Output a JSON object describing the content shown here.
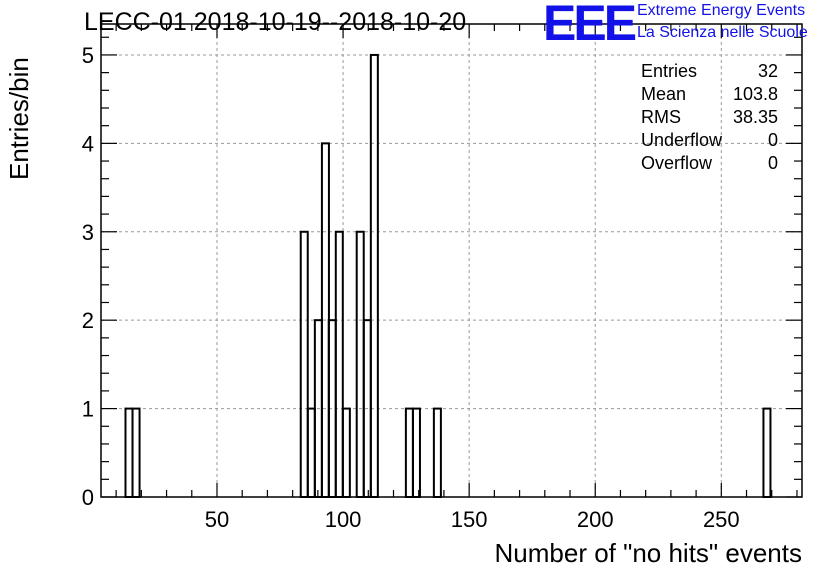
{
  "title": "LECC-01 2018-10-19--2018-10-20",
  "logo": {
    "text": "EEE",
    "line1": "Extreme Energy Events",
    "line2": "La Scienza nelle Scuole",
    "color": "#1212e8"
  },
  "stats": [
    {
      "label": "Entries",
      "value": "32"
    },
    {
      "label": "Mean",
      "value": "103.8"
    },
    {
      "label": "RMS",
      "value": "38.35"
    },
    {
      "label": "Underflow",
      "value": "0"
    },
    {
      "label": "Overflow",
      "value": "0"
    }
  ],
  "chart_data": {
    "type": "bar",
    "histogram": true,
    "xlabel": "Number of \"no hits\" events",
    "ylabel": "Entries/bin",
    "xlim": [
      4,
      282
    ],
    "ylim": [
      0,
      5.35
    ],
    "bin_width": 2.78,
    "x_ticks": [
      50,
      100,
      150,
      200,
      250
    ],
    "y_ticks": [
      0,
      1,
      2,
      3,
      4,
      5
    ],
    "grid": true,
    "bins": [
      {
        "x": 15.1,
        "value": 1
      },
      {
        "x": 17.9,
        "value": 1
      },
      {
        "x": 84.6,
        "value": 3
      },
      {
        "x": 87.4,
        "value": 1
      },
      {
        "x": 90.2,
        "value": 2
      },
      {
        "x": 93.0,
        "value": 4
      },
      {
        "x": 95.7,
        "value": 2
      },
      {
        "x": 98.5,
        "value": 3
      },
      {
        "x": 101.3,
        "value": 1
      },
      {
        "x": 106.8,
        "value": 3
      },
      {
        "x": 109.6,
        "value": 2
      },
      {
        "x": 112.4,
        "value": 5
      },
      {
        "x": 126.3,
        "value": 1
      },
      {
        "x": 129.1,
        "value": 1
      },
      {
        "x": 137.4,
        "value": 1
      },
      {
        "x": 268.1,
        "value": 1
      }
    ]
  }
}
